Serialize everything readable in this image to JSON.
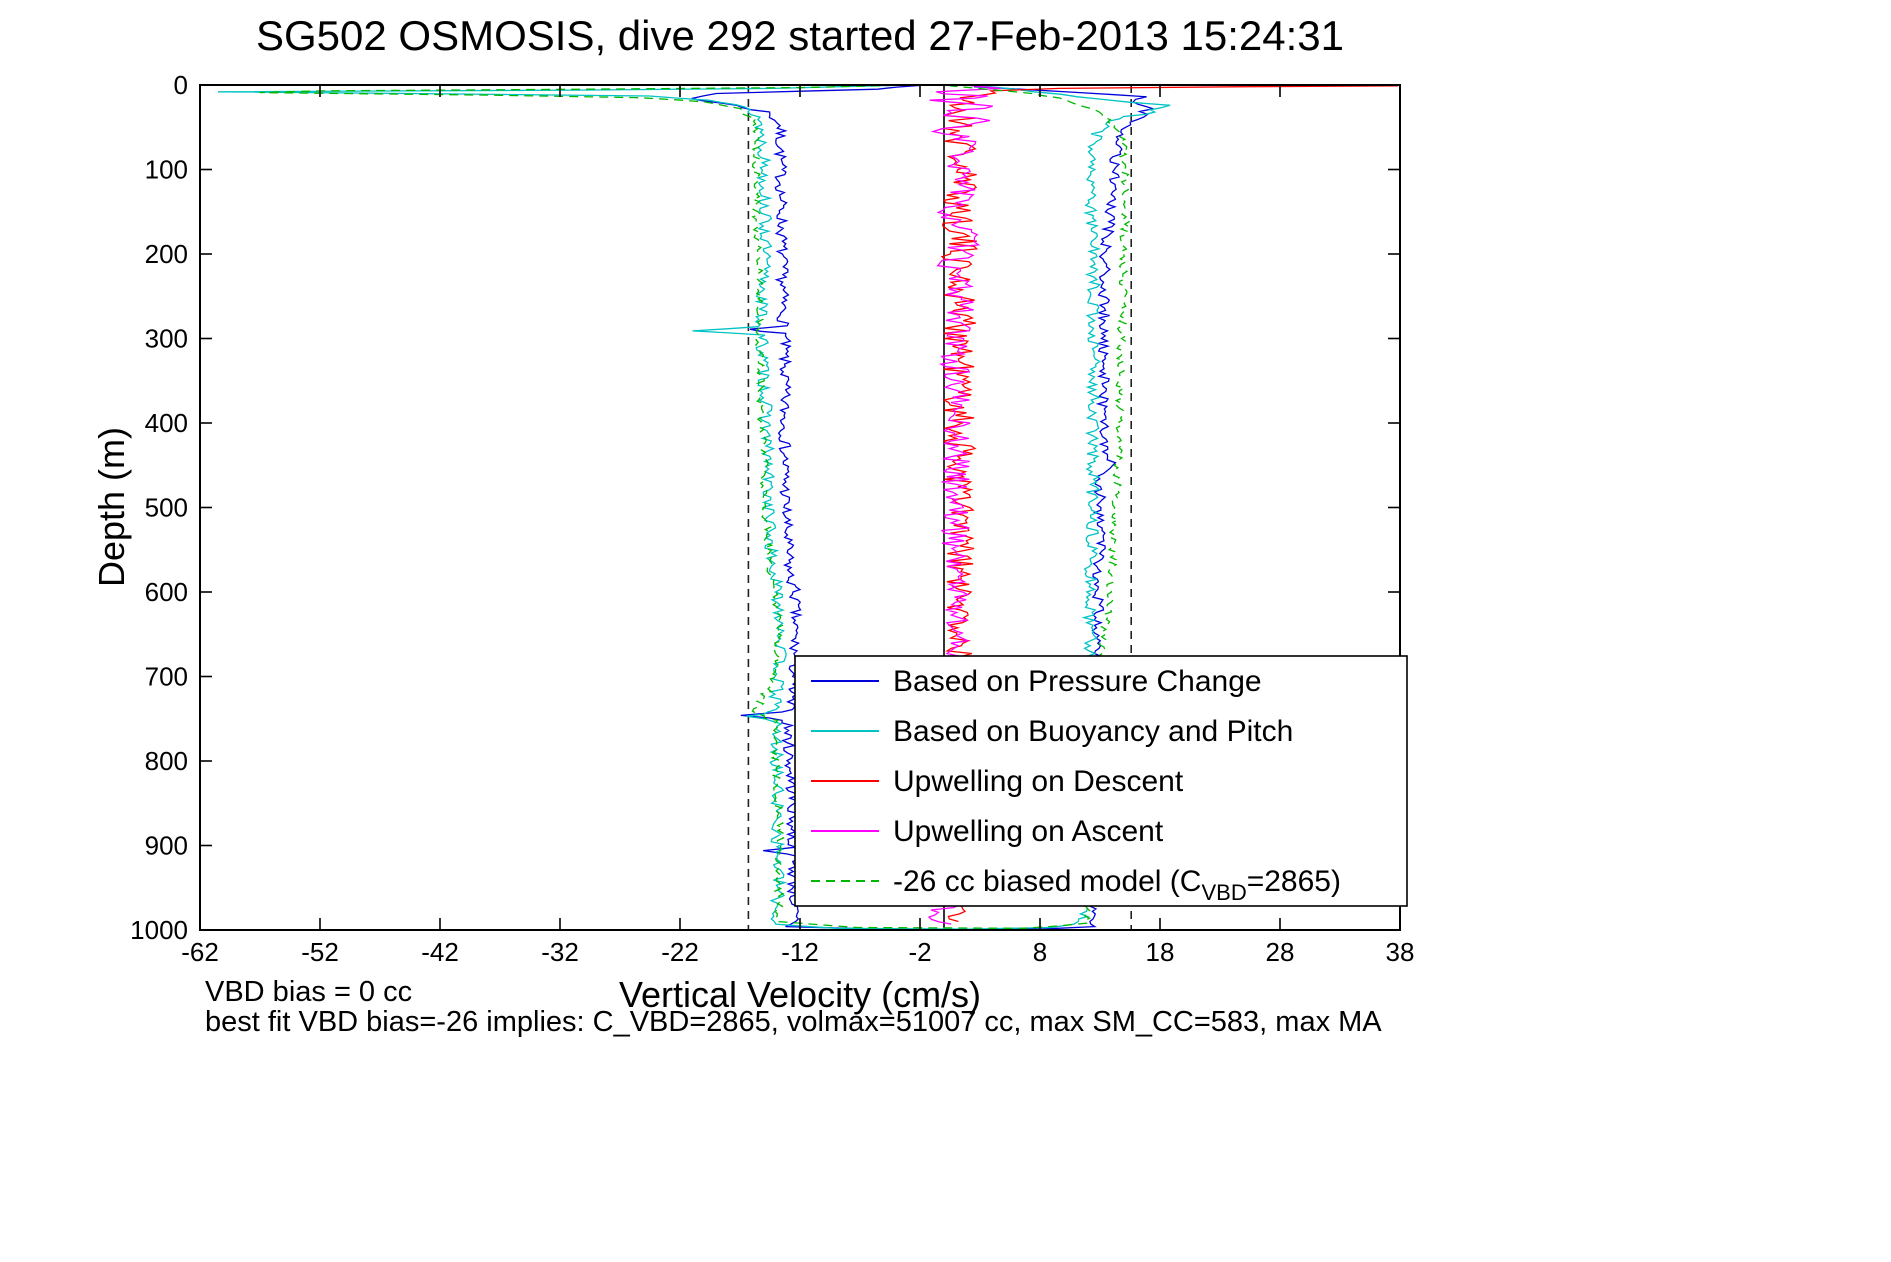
{
  "chart_data": {
    "type": "line",
    "title": "SG502 OSMOSIS, dive 292 started 27-Feb-2013 15:24:31",
    "xlabel": "Vertical Velocity (cm/s)",
    "ylabel": "Depth (m)",
    "annotations": {
      "left": "VBD bias = 0 cc",
      "bottom": "best fit VBD bias=-26 implies: C_VBD=2865, volmax=51007 cc, max SM_CC=583, max MA"
    },
    "xlim": [
      -62,
      38
    ],
    "ylim": [
      0,
      1000
    ],
    "y_inverted": true,
    "grid": false,
    "x_ticks": [
      -62,
      -52,
      -42,
      -32,
      -22,
      -12,
      -2,
      8,
      18,
      28,
      38
    ],
    "y_ticks": [
      0,
      100,
      200,
      300,
      400,
      500,
      600,
      700,
      800,
      900,
      1000
    ],
    "legend_position": "inside-bottom-right",
    "ref_lines": [
      {
        "x": 0,
        "style": "solid",
        "color": "#000000"
      },
      {
        "x": -16.3,
        "style": "dashed",
        "color": "#222222"
      },
      {
        "x": 15.6,
        "style": "dashed",
        "color": "#222222"
      }
    ],
    "points_format": "[depth_m, velocity_cm_per_s]",
    "series": [
      {
        "name": "Based on Pressure Change",
        "color": "#0000dd",
        "seed": 7,
        "noise": [
          [
            0,
            0.5
          ],
          [
            1000,
            0.5
          ]
        ],
        "points": [
          [
            0,
            -1
          ],
          [
            5,
            -6
          ],
          [
            10,
            -19
          ],
          [
            16,
            -21
          ],
          [
            24,
            -17.5
          ],
          [
            32,
            -14.8
          ],
          [
            45,
            -13.7
          ],
          [
            100,
            -13.6
          ],
          [
            200,
            -13.5
          ],
          [
            285,
            -13.4
          ],
          [
            289,
            -16.3
          ],
          [
            294,
            -13.3
          ],
          [
            400,
            -13.3
          ],
          [
            500,
            -13.2
          ],
          [
            580,
            -12.9
          ],
          [
            600,
            -12.4
          ],
          [
            700,
            -12.5
          ],
          [
            742,
            -13.0
          ],
          [
            746,
            -16.6
          ],
          [
            752,
            -13.1
          ],
          [
            850,
            -12.6
          ],
          [
            902,
            -12.7
          ],
          [
            906,
            -14.6
          ],
          [
            910,
            -12.6
          ],
          [
            990,
            -12.5
          ],
          [
            996,
            -13.4
          ],
          [
            999,
            -5
          ],
          [
            999,
            8
          ],
          [
            996,
            12.4
          ],
          [
            900,
            12.6
          ],
          [
            800,
            12.6
          ],
          [
            700,
            12.7
          ],
          [
            600,
            12.9
          ],
          [
            500,
            13.0
          ],
          [
            460,
            13.1
          ],
          [
            447,
            14.0
          ],
          [
            440,
            13.2
          ],
          [
            300,
            13.3
          ],
          [
            200,
            13.4
          ],
          [
            150,
            13.9
          ],
          [
            100,
            14.2
          ],
          [
            70,
            14.4
          ],
          [
            50,
            15.3
          ],
          [
            38,
            16.2
          ],
          [
            28,
            17.0
          ],
          [
            20,
            15.4
          ],
          [
            14,
            16.6
          ],
          [
            9,
            11
          ],
          [
            5,
            6.5
          ],
          [
            2,
            2.5
          ]
        ]
      },
      {
        "name": "Based on Buoyancy and Pitch",
        "color": "#00c3c3",
        "seed": 13,
        "noise": [
          [
            0,
            0.55
          ],
          [
            1000,
            0.55
          ]
        ],
        "points": [
          [
            0,
            -3
          ],
          [
            4,
            -14
          ],
          [
            6,
            -30
          ],
          [
            8,
            -60
          ],
          [
            10,
            -44
          ],
          [
            13,
            -24
          ],
          [
            18,
            -19.5
          ],
          [
            26,
            -16.8
          ],
          [
            38,
            -15.4
          ],
          [
            80,
            -15.0
          ],
          [
            200,
            -14.9
          ],
          [
            286,
            -15.3
          ],
          [
            291,
            -20.6
          ],
          [
            296,
            -15.2
          ],
          [
            400,
            -14.8
          ],
          [
            500,
            -14.6
          ],
          [
            560,
            -14.4
          ],
          [
            600,
            -13.9
          ],
          [
            640,
            -13.5
          ],
          [
            700,
            -13.8
          ],
          [
            742,
            -14.2
          ],
          [
            747,
            -16.3
          ],
          [
            753,
            -14.0
          ],
          [
            850,
            -13.9
          ],
          [
            950,
            -13.8
          ],
          [
            993,
            -14.1
          ],
          [
            998,
            -9
          ],
          [
            999,
            2
          ],
          [
            997,
            9
          ],
          [
            993,
            11.3
          ],
          [
            960,
            11.9
          ],
          [
            900,
            12.0
          ],
          [
            800,
            12.1
          ],
          [
            700,
            12.2
          ],
          [
            600,
            12.2
          ],
          [
            500,
            12.4
          ],
          [
            400,
            12.4
          ],
          [
            300,
            12.5
          ],
          [
            200,
            12.4
          ],
          [
            100,
            12.2
          ],
          [
            70,
            12.4
          ],
          [
            52,
            12.9
          ],
          [
            40,
            14.5
          ],
          [
            32,
            17.3
          ],
          [
            24,
            18.3
          ],
          [
            17,
            13.5
          ],
          [
            11,
            9.5
          ],
          [
            5,
            5.5
          ],
          [
            1,
            3
          ]
        ]
      },
      {
        "name": "Upwelling on Descent",
        "color": "#ff0000",
        "seed": 21,
        "noise": [
          [
            0,
            1.6
          ],
          [
            200,
            1.5
          ],
          [
            600,
            1.3
          ],
          [
            1000,
            1.2
          ]
        ],
        "points": [
          [
            0,
            12
          ],
          [
            1,
            38
          ],
          [
            2,
            26
          ],
          [
            4,
            10
          ],
          [
            7,
            4
          ],
          [
            12,
            2
          ],
          [
            30,
            1.3
          ],
          [
            100,
            1.4
          ],
          [
            200,
            1.3
          ],
          [
            300,
            1.4
          ],
          [
            400,
            1.2
          ],
          [
            500,
            1.4
          ],
          [
            600,
            1.2
          ],
          [
            700,
            1.3
          ],
          [
            800,
            1.2
          ],
          [
            900,
            1.3
          ],
          [
            990,
            1.2
          ]
        ]
      },
      {
        "name": "Upwelling on Ascent",
        "color": "#ff00ff",
        "seed": 33,
        "noise": [
          [
            0,
            1.5
          ],
          [
            300,
            1.2
          ],
          [
            1000,
            1.1
          ]
        ],
        "points": [
          [
            0,
            1.5
          ],
          [
            4,
            4
          ],
          [
            8,
            -1
          ],
          [
            13,
            3.8
          ],
          [
            18,
            -0.5
          ],
          [
            25,
            3.2
          ],
          [
            33,
            -0.3
          ],
          [
            42,
            2.8
          ],
          [
            55,
            0.3
          ],
          [
            70,
            2.4
          ],
          [
            90,
            0.2
          ],
          [
            115,
            2.2
          ],
          [
            145,
            0.4
          ],
          [
            180,
            1.9
          ],
          [
            220,
            0.5
          ],
          [
            260,
            1.7
          ],
          [
            300,
            0.8
          ],
          [
            400,
            1.1
          ],
          [
            500,
            0.9
          ],
          [
            600,
            1.1
          ],
          [
            700,
            0.9
          ],
          [
            800,
            1.1
          ],
          [
            880,
            0.8
          ],
          [
            920,
            1.6
          ],
          [
            945,
            -0.8
          ],
          [
            965,
            1.8
          ],
          [
            982,
            -1.6
          ],
          [
            993,
            0.6
          ]
        ]
      },
      {
        "name": "-26 cc biased model (C_VBD=2865)",
        "color": "#00b800",
        "dash": "9,6",
        "seed": 45,
        "noise": [
          [
            0,
            0.35
          ],
          [
            1000,
            0.35
          ]
        ],
        "points": [
          [
            0,
            -2.5
          ],
          [
            3,
            -12
          ],
          [
            5,
            -30
          ],
          [
            7,
            -52
          ],
          [
            9,
            -57
          ],
          [
            12,
            -38
          ],
          [
            15,
            -25
          ],
          [
            20,
            -20
          ],
          [
            28,
            -17.2
          ],
          [
            40,
            -16.0
          ],
          [
            70,
            -15.6
          ],
          [
            150,
            -15.6
          ],
          [
            250,
            -15.4
          ],
          [
            350,
            -15.3
          ],
          [
            450,
            -15.0
          ],
          [
            520,
            -14.8
          ],
          [
            560,
            -14.6
          ],
          [
            600,
            -14.1
          ],
          [
            645,
            -13.7
          ],
          [
            700,
            -14.0
          ],
          [
            744,
            -15.9
          ],
          [
            752,
            -14.1
          ],
          [
            820,
            -13.9
          ],
          [
            900,
            -13.7
          ],
          [
            990,
            -13.8
          ],
          [
            997,
            -7
          ],
          [
            998,
            7
          ],
          [
            992,
            11.8
          ],
          [
            930,
            12.4
          ],
          [
            860,
            12.8
          ],
          [
            790,
            13.1
          ],
          [
            720,
            13.3
          ],
          [
            650,
            13.3
          ],
          [
            600,
            13.9
          ],
          [
            550,
            14.1
          ],
          [
            500,
            14.3
          ],
          [
            450,
            14.5
          ],
          [
            400,
            14.6
          ],
          [
            350,
            14.7
          ],
          [
            300,
            14.8
          ],
          [
            250,
            14.9
          ],
          [
            200,
            15.0
          ],
          [
            150,
            15.1
          ],
          [
            100,
            15.1
          ],
          [
            70,
            14.9
          ],
          [
            50,
            14.3
          ],
          [
            38,
            13.4
          ],
          [
            28,
            12.2
          ],
          [
            18,
            10.5
          ],
          [
            10,
            7
          ],
          [
            5,
            3.5
          ],
          [
            1,
            0.5
          ]
        ]
      }
    ],
    "legend": [
      {
        "color": "#0000dd",
        "label_parts": [
          {
            "text": "Based on Pressure Change"
          }
        ]
      },
      {
        "color": "#00c3c3",
        "label_parts": [
          {
            "text": "Based on Buoyancy and Pitch"
          }
        ]
      },
      {
        "color": "#ff0000",
        "label_parts": [
          {
            "text": "Upwelling on Descent"
          }
        ]
      },
      {
        "color": "#ff00ff",
        "label_parts": [
          {
            "text": "Upwelling on Ascent"
          }
        ]
      },
      {
        "color": "#00b800",
        "dash": "9,6",
        "label_parts": [
          {
            "text": "-26 cc biased model (C"
          },
          {
            "text": "VBD",
            "sub": true
          },
          {
            "text": "=2865)"
          }
        ]
      }
    ]
  }
}
